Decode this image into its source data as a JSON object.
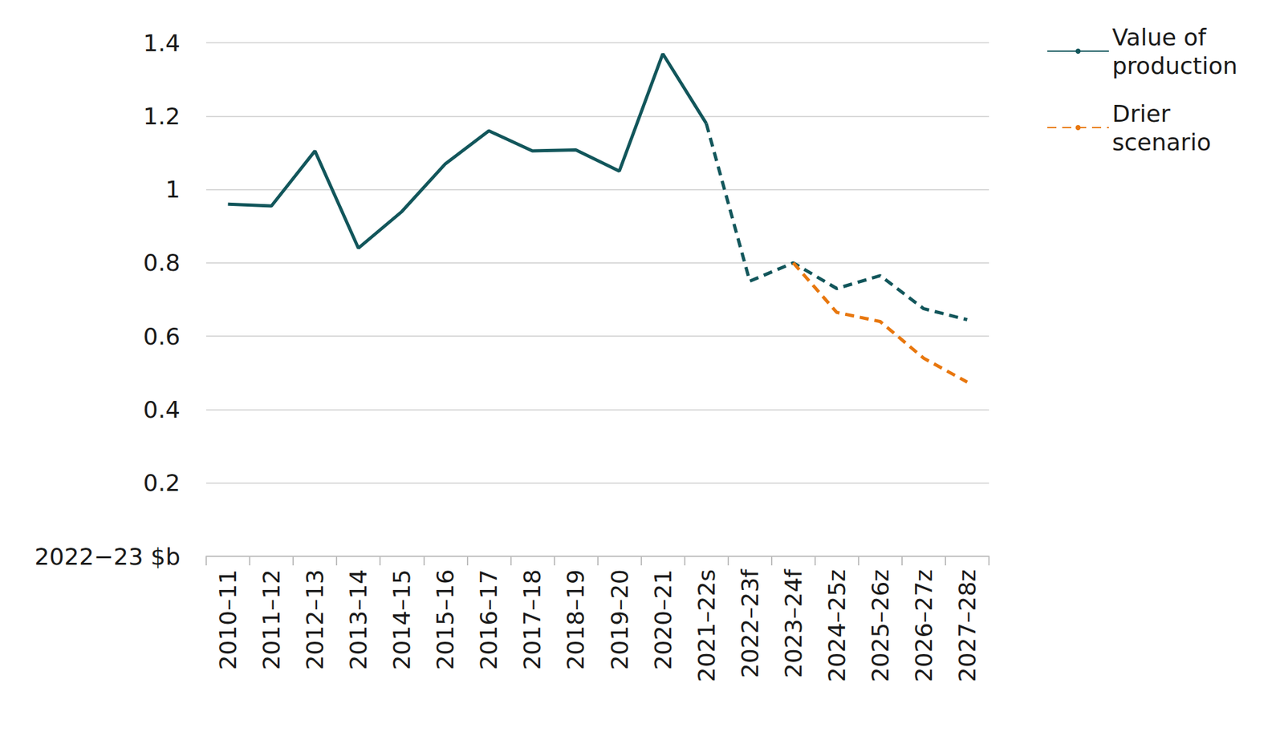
{
  "chart_data": {
    "type": "line",
    "y_label": "2022−23 $b",
    "categories": [
      "2010–11",
      "2011–12",
      "2012–13",
      "2013–14",
      "2014–15",
      "2015–16",
      "2016–17",
      "2017–18",
      "2018–19",
      "2019–20",
      "2020–21",
      "2021–22s",
      "2022–23f",
      "2023–24f",
      "2024–25z",
      "2025–26z",
      "2026–27z",
      "2027–28z"
    ],
    "series": [
      {
        "name": "Value of production",
        "color": "#12565b",
        "line_style": "solid",
        "values": [
          0.96,
          0.955,
          1.105,
          0.84,
          0.94,
          1.07,
          1.16,
          1.105,
          1.108,
          1.05,
          1.37,
          1.18,
          null,
          null,
          null,
          null,
          null,
          null
        ]
      },
      {
        "name": "Value of production",
        "color": "#12565b",
        "line_style": "dashed",
        "values": [
          null,
          null,
          null,
          null,
          null,
          null,
          null,
          null,
          null,
          null,
          null,
          1.18,
          0.75,
          0.8,
          0.73,
          0.765,
          0.675,
          0.645
        ]
      },
      {
        "name": "Drier scenario",
        "color": "#e8770e",
        "line_style": "dashed",
        "values": [
          null,
          null,
          null,
          null,
          null,
          null,
          null,
          null,
          null,
          null,
          null,
          null,
          null,
          0.8,
          0.665,
          0.64,
          0.54,
          0.475
        ]
      }
    ],
    "ylim": [
      0,
      1.4
    ],
    "yticks": [
      0.2,
      0.4,
      0.6,
      0.8,
      1,
      1.2,
      1.4
    ],
    "grid": true,
    "legend": "top-right"
  }
}
